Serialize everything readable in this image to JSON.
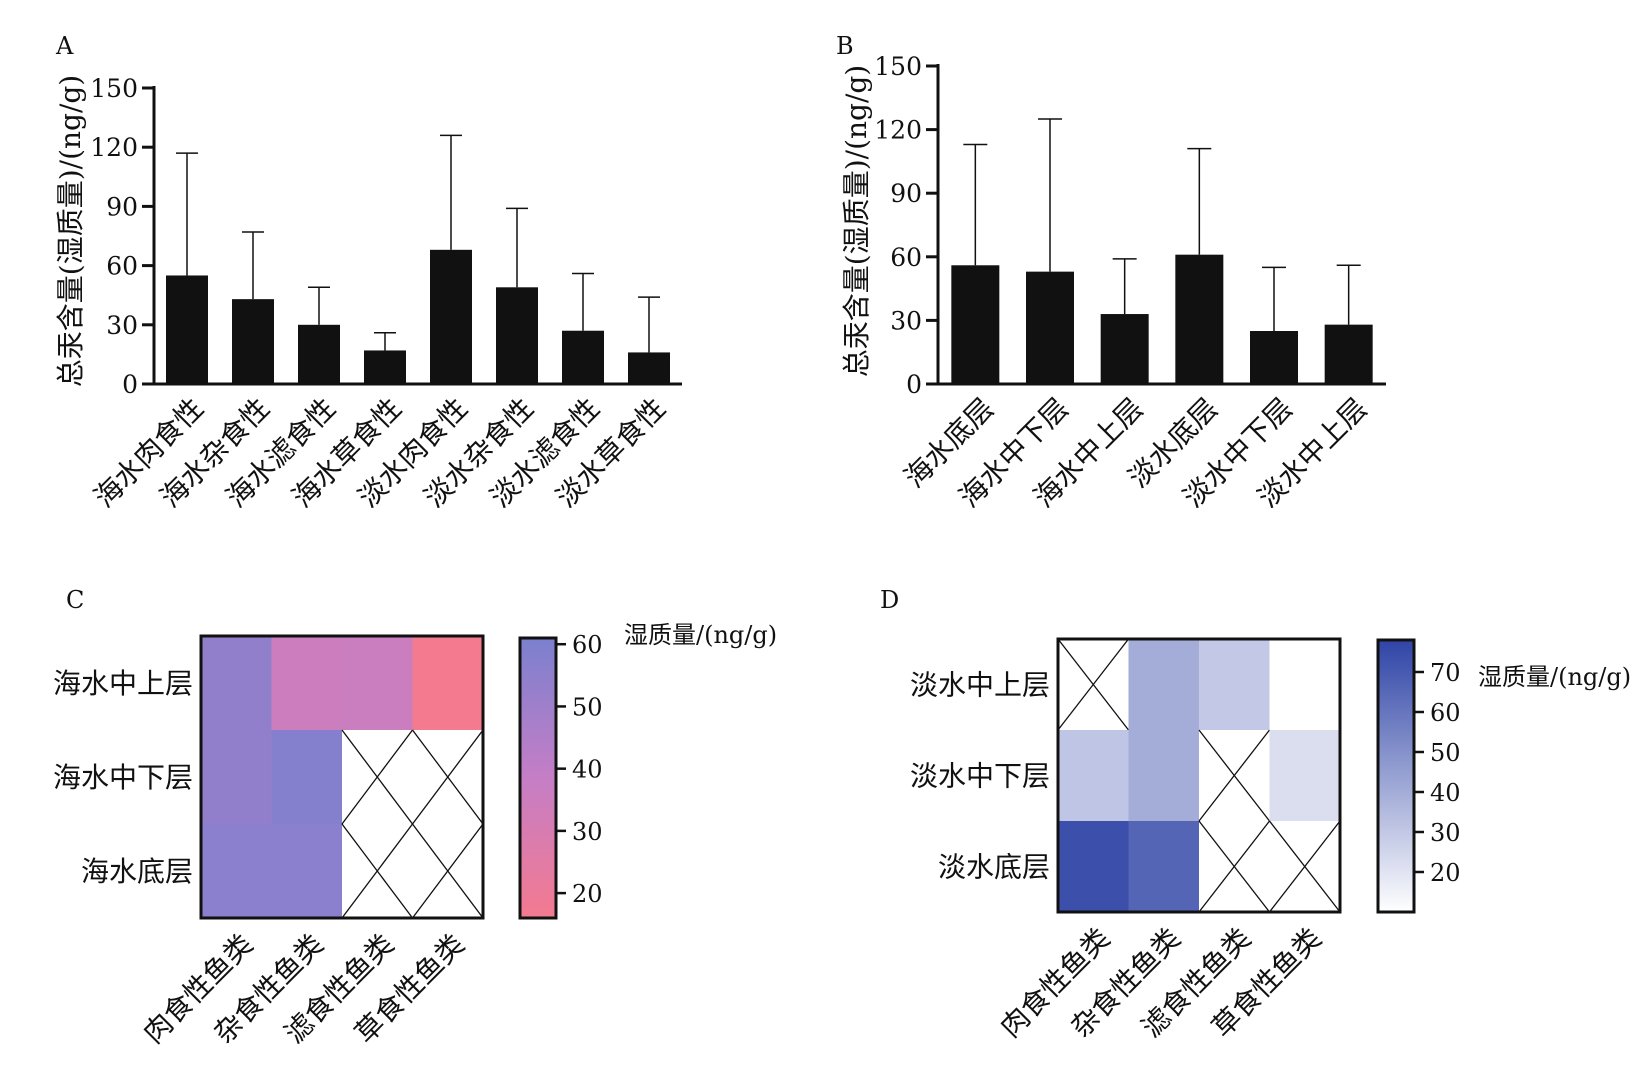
{
  "colors": {
    "bar": "#111111",
    "axis": "#111111",
    "heat_c_low": "#f47a90",
    "heat_c_mid": "#c57ec6",
    "heat_c_high": "#7b80cf",
    "heat_d_low": "#ffffff",
    "heat_d_high": "#2f44a6"
  },
  "chart_data": [
    {
      "type": "bar",
      "panel": "A",
      "ylabel": "总汞含量(湿质量)/(ng/g)",
      "ylim": [
        0,
        150
      ],
      "yticks": [
        "0",
        "30",
        "60",
        "90",
        "120",
        "150"
      ],
      "categories": [
        "海水肉食性",
        "海水杂食性",
        "海水滤食性",
        "海水草食性",
        "淡水肉食性",
        "淡水杂食性",
        "淡水滤食性",
        "淡水草食性"
      ],
      "values": [
        55,
        43,
        30,
        17,
        68,
        49,
        27,
        16
      ],
      "errors": [
        62,
        34,
        19,
        9,
        58,
        40,
        29,
        28
      ]
    },
    {
      "type": "bar",
      "panel": "B",
      "ylabel": "总汞含量(湿质量)/(ng/g)",
      "ylim": [
        0,
        150
      ],
      "yticks": [
        "0",
        "30",
        "60",
        "90",
        "120",
        "150"
      ],
      "categories": [
        "海水底层",
        "海水中下层",
        "海水中上层",
        "淡水底层",
        "淡水中下层",
        "淡水中上层"
      ],
      "values": [
        56,
        53,
        33,
        61,
        25,
        28
      ],
      "errors": [
        57,
        72,
        26,
        50,
        30,
        28
      ]
    },
    {
      "type": "heatmap",
      "panel": "C",
      "rows": [
        "海水中上层",
        "海水中下层",
        "海水底层"
      ],
      "columns": [
        "肉食性鱼类",
        "杂食性鱼类",
        "滤食性鱼类",
        "草食性鱼类"
      ],
      "values": [
        [
          54,
          35,
          36,
          16
        ],
        [
          54,
          58,
          null,
          null
        ],
        [
          56,
          56,
          null,
          null
        ]
      ],
      "colorbar": {
        "title": "湿质量/(ng/g)",
        "ticks": [
          "20",
          "30",
          "40",
          "50",
          "60"
        ],
        "range": [
          16,
          61
        ]
      }
    },
    {
      "type": "heatmap",
      "panel": "D",
      "rows": [
        "淡水中上层",
        "淡水中下层",
        "淡水底层"
      ],
      "columns": [
        "肉食性鱼类",
        "杂食性鱼类",
        "滤食性鱼类",
        "草食性鱼类"
      ],
      "values": [
        [
          null,
          40,
          30,
          10
        ],
        [
          31,
          40,
          null,
          22
        ],
        [
          74,
          66,
          null,
          null
        ]
      ],
      "colorbar": {
        "title": "湿质量/(ng/g)",
        "ticks": [
          "20",
          "30",
          "40",
          "50",
          "60",
          "70"
        ],
        "range": [
          10,
          78
        ]
      }
    }
  ]
}
